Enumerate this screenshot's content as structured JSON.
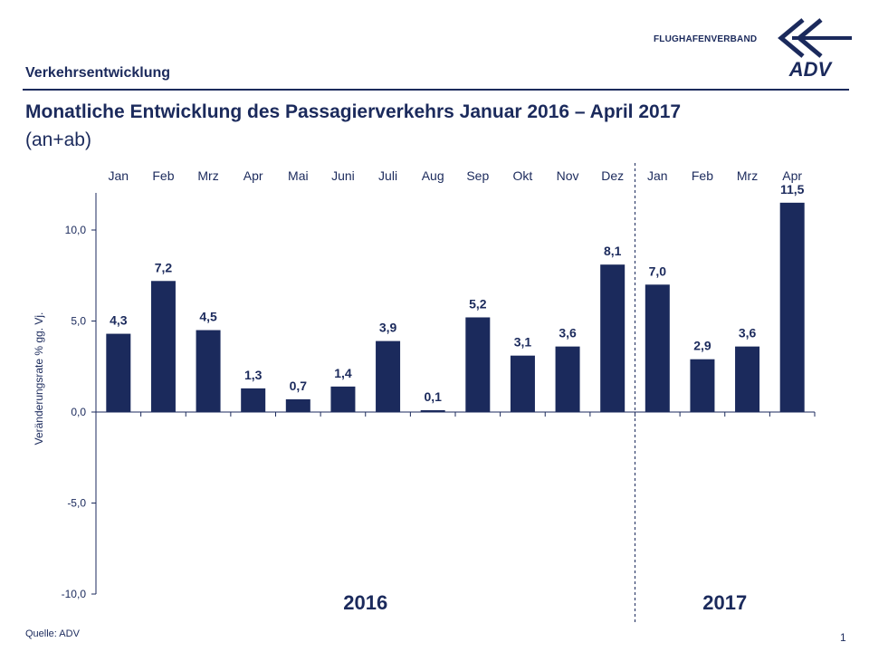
{
  "header": {
    "section_title": "Verkehrsentwicklung",
    "brand_text": "FLUGHAFENVERBAND",
    "logo_text": "ADV"
  },
  "title": "Monatliche Entwicklung des Passagierverkehrs  Januar 2016 – April 2017",
  "subtitle": "(an+ab)",
  "footer": {
    "source": "Quelle: ADV",
    "page_number": "1"
  },
  "colors": {
    "bar": "#1b2a5c",
    "text": "#1b2a5c",
    "axis": "#1b2a5c"
  },
  "chart_data": {
    "type": "bar",
    "categories": [
      "Jan",
      "Feb",
      "Mrz",
      "Apr",
      "Mai",
      "Juni",
      "Juli",
      "Aug",
      "Sep",
      "Okt",
      "Nov",
      "Dez",
      "Jan",
      "Feb",
      "Mrz",
      "Apr"
    ],
    "values": [
      4.3,
      7.2,
      4.5,
      1.3,
      0.7,
      1.4,
      3.9,
      0.1,
      5.2,
      3.1,
      3.6,
      8.1,
      7.0,
      2.9,
      3.6,
      11.5
    ],
    "value_labels": [
      "4,3",
      "7,2",
      "4,5",
      "1,3",
      "0,7",
      "1,4",
      "3,9",
      "0,1",
      "5,2",
      "3,1",
      "3,6",
      "8,1",
      "7,0",
      "2,9",
      "3,6",
      "11,5"
    ],
    "ylabel": "Veränderungsrate  % gg. Vj.",
    "ylim": [
      -10,
      12.5
    ],
    "yticks": [
      10,
      5,
      0,
      -5,
      -10
    ],
    "ytick_labels": [
      "10,0",
      "5,0",
      "0,0",
      "-5,0",
      "-10,0"
    ],
    "year_groups": [
      {
        "label": "2016",
        "months": 12
      },
      {
        "label": "2017",
        "months": 4
      }
    ],
    "category_axis_position": "top",
    "grid": false,
    "legend": "none"
  }
}
